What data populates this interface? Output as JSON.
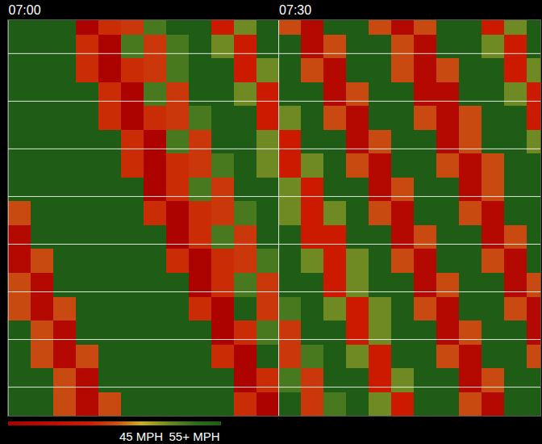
{
  "chart_data": {
    "type": "heatmap",
    "x": [
      1.25,
      3.75,
      6.25,
      8.75,
      11.25,
      13.75,
      16.25,
      18.75,
      21.25,
      23.75,
      26.25,
      28.75,
      31.25,
      33.75,
      36.25,
      38.75,
      41.25,
      43.75,
      46.25,
      48.75,
      51.25,
      53.75,
      56.25,
      58.75
    ],
    "y": [
      0.25,
      0.75,
      1.25,
      1.75,
      2.25,
      2.75,
      3.25,
      3.75,
      4.25,
      4.75,
      5.25,
      5.75,
      6.25,
      6.75,
      7.25,
      7.75,
      8.25
    ],
    "z": [
      [
        60,
        60,
        40,
        25,
        40,
        60,
        60,
        60,
        60,
        60,
        37,
        22,
        60,
        38,
        53,
        60,
        50,
        35,
        60,
        60,
        40,
        25,
        60,
        60
      ],
      [
        60,
        60,
        40,
        25,
        60,
        60,
        60,
        60,
        60,
        60,
        22,
        37,
        53,
        38,
        60,
        60,
        35,
        50,
        60,
        60,
        25,
        40,
        60,
        60
      ],
      [
        60,
        40,
        25,
        40,
        60,
        60,
        60,
        60,
        60,
        37,
        22,
        60,
        38,
        53,
        60,
        50,
        35,
        60,
        60,
        40,
        25,
        60,
        60,
        40
      ],
      [
        60,
        40,
        25,
        60,
        60,
        60,
        60,
        60,
        60,
        22,
        37,
        53,
        38,
        60,
        60,
        35,
        50,
        60,
        60,
        25,
        40,
        60,
        60,
        25
      ],
      [
        40,
        25,
        40,
        60,
        60,
        60,
        60,
        60,
        37,
        22,
        60,
        38,
        53,
        60,
        50,
        35,
        50,
        60,
        40,
        25,
        60,
        60,
        40,
        25
      ],
      [
        40,
        25,
        60,
        60,
        60,
        60,
        60,
        60,
        22,
        37,
        53,
        38,
        60,
        60,
        35,
        50,
        60,
        60,
        25,
        40,
        60,
        60,
        25,
        40
      ],
      [
        25,
        40,
        60,
        60,
        60,
        60,
        60,
        37,
        22,
        37,
        38,
        53,
        60,
        50,
        35,
        50,
        60,
        40,
        25,
        60,
        60,
        40,
        25,
        60
      ],
      [
        25,
        60,
        60,
        60,
        60,
        60,
        60,
        22,
        37,
        53,
        38,
        60,
        60,
        35,
        35,
        60,
        60,
        25,
        40,
        60,
        60,
        25,
        40,
        60
      ],
      [
        40,
        60,
        60,
        60,
        60,
        60,
        37,
        22,
        37,
        38,
        53,
        60,
        50,
        35,
        50,
        60,
        40,
        25,
        60,
        60,
        40,
        25,
        60,
        60
      ],
      [
        60,
        60,
        60,
        60,
        60,
        60,
        22,
        37,
        53,
        38,
        60,
        60,
        50,
        35,
        60,
        60,
        25,
        40,
        60,
        60,
        25,
        40,
        60,
        60
      ],
      [
        60,
        60,
        60,
        60,
        60,
        37,
        22,
        37,
        38,
        53,
        60,
        50,
        35,
        50,
        60,
        40,
        25,
        60,
        60,
        40,
        25,
        40,
        60,
        60
      ],
      [
        60,
        60,
        60,
        60,
        60,
        37,
        22,
        53,
        38,
        60,
        60,
        50,
        35,
        60,
        60,
        25,
        40,
        60,
        60,
        25,
        40,
        60,
        60,
        50
      ],
      [
        60,
        60,
        60,
        60,
        37,
        22,
        37,
        38,
        53,
        60,
        60,
        35,
        50,
        60,
        40,
        25,
        60,
        60,
        40,
        25,
        40,
        60,
        60,
        35
      ],
      [
        60,
        60,
        60,
        60,
        37,
        22,
        53,
        38,
        60,
        60,
        50,
        35,
        60,
        60,
        25,
        40,
        60,
        60,
        25,
        25,
        60,
        60,
        50,
        35
      ],
      [
        60,
        60,
        60,
        37,
        22,
        37,
        38,
        53,
        60,
        60,
        35,
        50,
        60,
        40,
        25,
        60,
        60,
        40,
        25,
        40,
        60,
        60,
        35,
        50
      ],
      [
        60,
        60,
        60,
        37,
        22,
        53,
        38,
        53,
        60,
        50,
        35,
        60,
        60,
        25,
        40,
        60,
        60,
        40,
        25,
        60,
        60,
        50,
        35,
        60
      ],
      [
        60,
        60,
        60,
        22,
        37,
        38,
        53,
        60,
        60,
        35,
        50,
        60,
        40,
        25,
        60,
        60,
        40,
        25,
        40,
        60,
        60,
        35,
        50,
        60
      ]
    ],
    "xlim": [
      0,
      59
    ],
    "xticks": [
      {
        "value": 0,
        "label": "07:00"
      },
      {
        "value": 30,
        "label": "07:30"
      }
    ],
    "ylim": [
      0,
      8.3
    ],
    "yticks": [
      0.6,
      1.6,
      2.6,
      3.6,
      4.6,
      5.6,
      6.6,
      7.6
    ],
    "grid": true,
    "tick_labels": "x",
    "colorbar": {
      "range": [
        20,
        60
      ],
      "ticks": [
        {
          "value": 45,
          "label": "45 MPH"
        },
        {
          "value": 55,
          "label": "55+ MPH"
        }
      ]
    }
  }
}
